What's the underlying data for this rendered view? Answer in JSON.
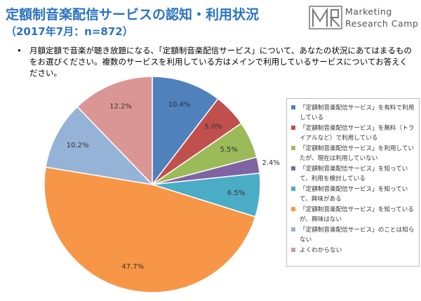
{
  "logo": {
    "line1": "Marketing",
    "line2": "Research Camp"
  },
  "question": "月額定額で音楽が聴き放題になる、「定額制音楽配信サービス」について、あなたの状況にあてはまるものをお選びください。複数のサービスを利用している方はメインで利用しているサービスについてお答えください。",
  "chart_data": {
    "type": "pie",
    "title": "定額制音楽配信サービスの認知・利用状況",
    "subtitle": "（2017年7月：n=872）",
    "categories": [
      "「定額制音楽配信サービス」を有料で利用している",
      "「定額制音楽配信サービス」を無料（トライアルなど）で利用している",
      "「定額制音楽配信サービス」を利用していたが、現在は利用していない",
      "「定額制音楽配信サービス」を知っていて、利用を検討している",
      "「定額制音楽配信サービス」を知っていて、興味がある",
      "「定額制音楽配信サービス」を知っているが、興味はない",
      "「定額制音楽配信サービス」のことは知らない",
      "よくわからない"
    ],
    "values": [
      10.4,
      5.0,
      5.5,
      2.4,
      6.5,
      47.7,
      10.2,
      12.2
    ],
    "value_labels": [
      "10.4%",
      "5.0%",
      "5.5%",
      "2.4%",
      "6.5%",
      "47.7%",
      "10.2%",
      "12.2%"
    ],
    "colors": [
      "#4f81bd",
      "#c0504d",
      "#9bbb59",
      "#8064a2",
      "#4bacc6",
      "#f79646",
      "#95b3d7",
      "#da9694"
    ]
  }
}
